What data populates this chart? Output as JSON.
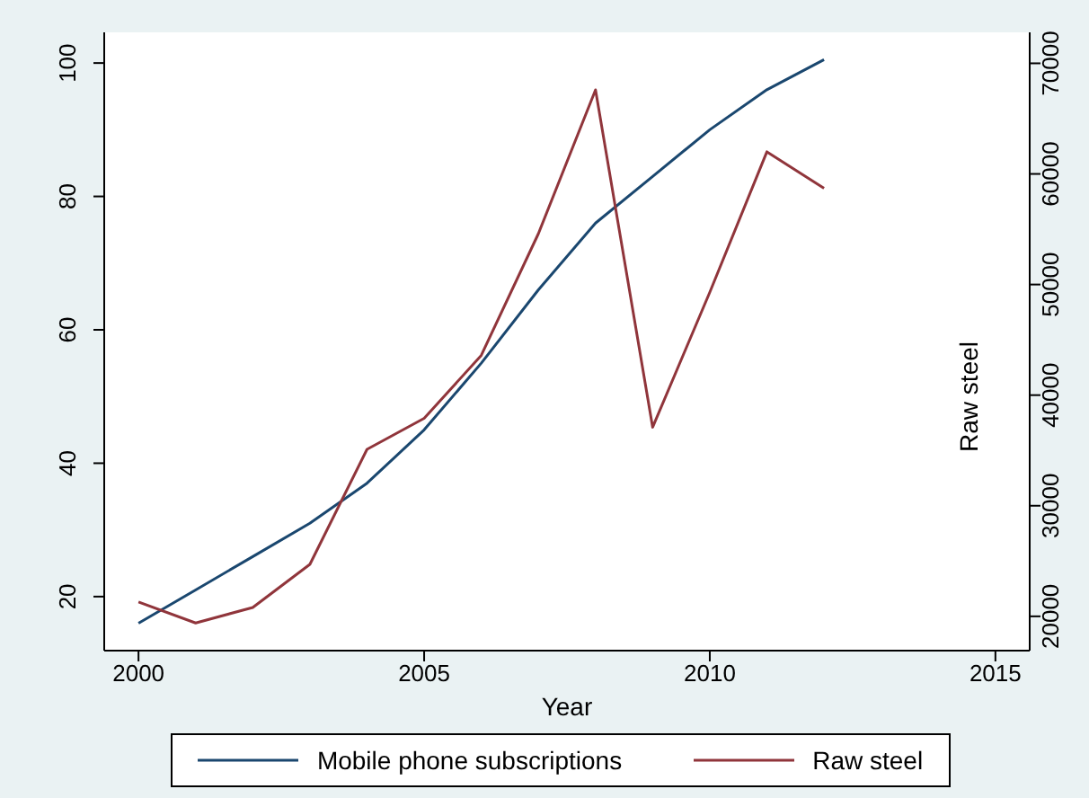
{
  "chart_data": {
    "type": "line",
    "xlabel": "Year",
    "y2label": "Raw steel",
    "x": [
      2000,
      2001,
      2002,
      2003,
      2004,
      2005,
      2006,
      2007,
      2008,
      2009,
      2010,
      2011,
      2012
    ],
    "series": [
      {
        "name": "Mobile phone subscriptions",
        "color": "#1a476f",
        "values": [
          16,
          21,
          26,
          31,
          37,
          45,
          55,
          66,
          76,
          83,
          90,
          96,
          100.5
        ]
      },
      {
        "name": "Raw steel",
        "color": "#90353b",
        "axis": "y2",
        "values": [
          21300,
          19400,
          20800,
          24700,
          35100,
          37900,
          43600,
          54600,
          67600,
          37100,
          49300,
          62000,
          58700
        ]
      }
    ],
    "xlim": [
      1999.4,
      2015.6
    ],
    "xticks": [
      2000,
      2005,
      2010,
      2015
    ],
    "ylim": [
      11.9,
      104.6
    ],
    "yticks": [
      20,
      40,
      60,
      80,
      100
    ],
    "y2lim": [
      16900,
      72800
    ],
    "y2ticks": [
      20000,
      30000,
      40000,
      50000,
      60000,
      70000
    ],
    "grid": false,
    "legend": "bottom",
    "marker": "none",
    "line_style": "solid"
  }
}
